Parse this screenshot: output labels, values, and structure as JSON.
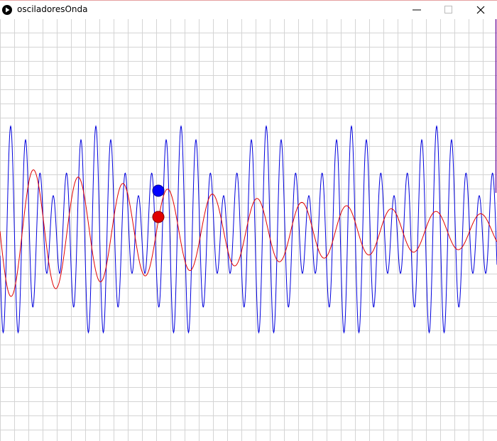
{
  "window": {
    "title": "osciladoresOnda"
  }
}
